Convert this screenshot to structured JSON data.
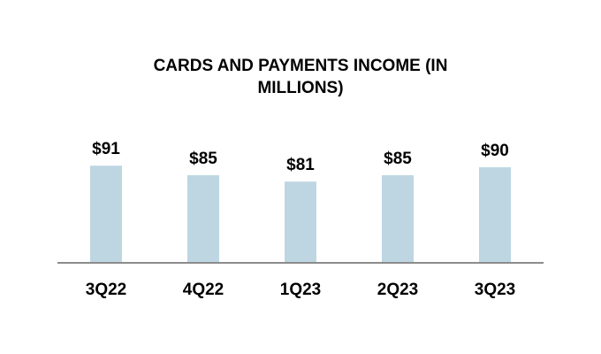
{
  "chart_data": {
    "type": "bar",
    "title": "CARDS AND PAYMENTS INCOME (IN MILLIONS)",
    "categories": [
      "3Q22",
      "4Q22",
      "1Q23",
      "2Q23",
      "3Q23"
    ],
    "values": [
      91,
      85,
      81,
      85,
      90
    ],
    "value_labels": [
      "$91",
      "$85",
      "$81",
      "$85",
      "$90"
    ],
    "color": "#bdd6e2",
    "ylim": [
      30,
      100
    ]
  }
}
